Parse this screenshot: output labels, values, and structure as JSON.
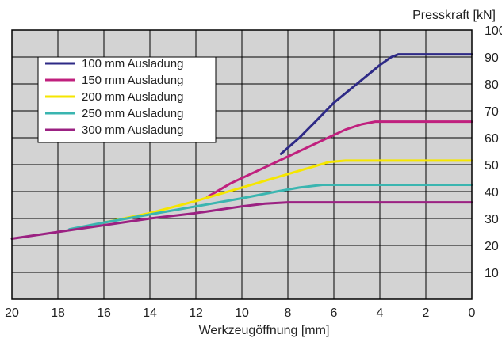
{
  "chart_data": {
    "type": "line",
    "title": "",
    "xlabel": "Werkzeugöffnung [mm]",
    "ylabel": "Presskraft [kN]",
    "xlim": [
      20,
      0
    ],
    "ylim": [
      0,
      100
    ],
    "x_ticks": [
      "20",
      "18",
      "16",
      "14",
      "12",
      "10",
      "8",
      "6",
      "4",
      "2",
      "0"
    ],
    "y_ticks": [
      "10",
      "20",
      "30",
      "40",
      "50",
      "60",
      "70",
      "80",
      "90",
      "100"
    ],
    "grid": true,
    "legend_position": "top-left",
    "plot_background": "#d3d3d3",
    "series": [
      {
        "name": "100 mm Ausladung",
        "color": "#2e2a86",
        "points": [
          [
            8.3,
            54
          ],
          [
            7.5,
            60
          ],
          [
            6.8,
            66
          ],
          [
            6.0,
            73
          ],
          [
            5.0,
            80
          ],
          [
            4.0,
            87
          ],
          [
            3.5,
            90
          ],
          [
            3.2,
            91
          ],
          [
            0,
            91
          ]
        ]
      },
      {
        "name": "150 mm Ausladung",
        "color": "#c0207e",
        "points": [
          [
            11.5,
            38
          ],
          [
            10.5,
            43
          ],
          [
            9.5,
            47
          ],
          [
            8.5,
            51
          ],
          [
            7.5,
            55
          ],
          [
            6.5,
            59
          ],
          [
            5.5,
            63
          ],
          [
            4.8,
            65
          ],
          [
            4.2,
            66
          ],
          [
            0,
            66
          ]
        ]
      },
      {
        "name": "200 mm Ausladung",
        "color": "#f5e600",
        "points": [
          [
            16.0,
            28.5
          ],
          [
            14.0,
            32
          ],
          [
            12.0,
            36.5
          ],
          [
            10.0,
            41.5
          ],
          [
            8.0,
            46.5
          ],
          [
            7.0,
            49
          ],
          [
            6.2,
            51
          ],
          [
            5.5,
            51.5
          ],
          [
            0,
            51.5
          ]
        ]
      },
      {
        "name": "250 mm Ausladung",
        "color": "#3ab5b0",
        "points": [
          [
            17.5,
            26
          ],
          [
            16.0,
            28.5
          ],
          [
            14.0,
            31.5
          ],
          [
            12.0,
            34.5
          ],
          [
            10.0,
            37.5
          ],
          [
            8.5,
            40
          ],
          [
            7.5,
            41.5
          ],
          [
            6.5,
            42.5
          ],
          [
            0,
            42.5
          ]
        ]
      },
      {
        "name": "300 mm Ausladung",
        "color": "#9b2182",
        "points": [
          [
            20.0,
            22.5
          ],
          [
            18.0,
            25
          ],
          [
            16.0,
            27.5
          ],
          [
            14.0,
            30
          ],
          [
            12.0,
            32
          ],
          [
            10.0,
            34.5
          ],
          [
            9.0,
            35.5
          ],
          [
            8.0,
            36
          ],
          [
            0,
            36
          ]
        ]
      }
    ]
  }
}
